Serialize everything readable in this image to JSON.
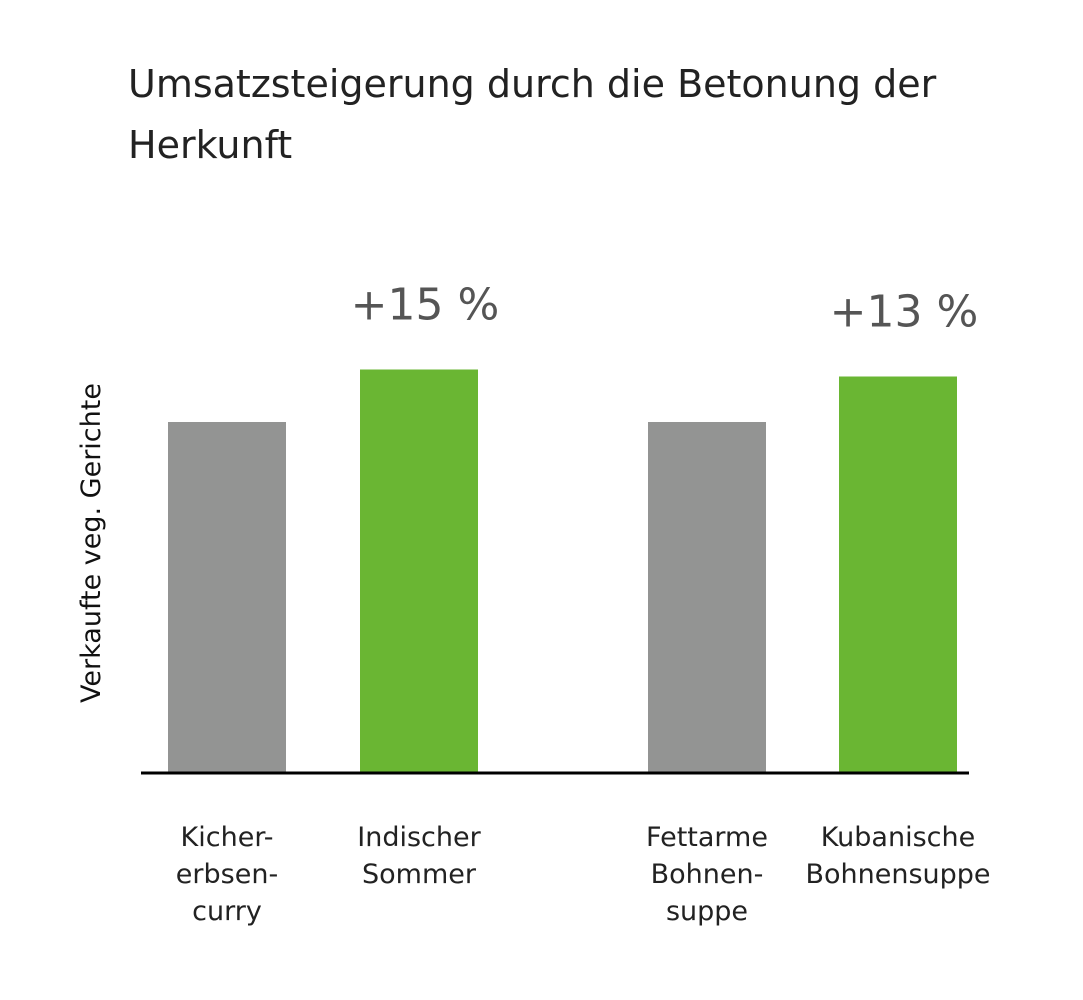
{
  "chart_data": {
    "type": "bar",
    "title": "Umsatzsteigerung durch die Betonung der Herkunft",
    "ylabel": "Verkaufte veg. Gerichte",
    "xlabel": "",
    "categories": [
      "Kicher-\nerbsen-\ncurry",
      "Indischer\nSommer",
      "Fettarme\nBohnen-\nsuppe",
      "Kubanische\nBohnensuppe"
    ],
    "values": [
      100,
      115,
      100,
      113
    ],
    "colors": [
      "#939493",
      "#6ab633",
      "#939493",
      "#6ab633"
    ],
    "annotations": [
      {
        "category_index": 1,
        "text": "+15 %"
      },
      {
        "category_index": 3,
        "text": "+13 %"
      }
    ],
    "ylim": [
      0,
      115
    ],
    "grid": false,
    "legend": "none"
  }
}
